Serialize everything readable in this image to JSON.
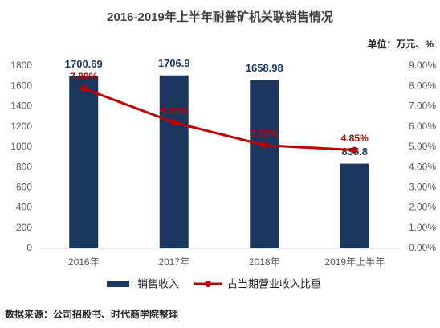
{
  "chart_data": {
    "type": "combo",
    "title": "2016-2019年上半年耐普矿机关联销售情况",
    "unit": "单位：万元、%",
    "source": "数据来源：公司招股书、时代商学院整理",
    "categories": [
      "2016年",
      "2017年",
      "2018年",
      "2019年上半年"
    ],
    "series": [
      {
        "name": "销售收入",
        "type": "bar",
        "color": "#1b3760",
        "values": [
          1700.69,
          1706.9,
          1658.98,
          835.8
        ]
      },
      {
        "name": "占当期营业收入比重",
        "type": "line",
        "axis": "y2",
        "color": "#c00000",
        "values": [
          7.89,
          6.21,
          5.09,
          4.85
        ],
        "value_labels": [
          "7.89%",
          "6.21%",
          "5.09%",
          "4.85%"
        ]
      }
    ],
    "ylim": [
      0,
      1800
    ],
    "yticks": [
      0,
      200,
      400,
      600,
      800,
      1000,
      1200,
      1400,
      1600,
      1800
    ],
    "y2lim": [
      0,
      9
    ],
    "y2ticks": [
      {
        "value": 0,
        "label": "0.00%"
      },
      {
        "value": 1,
        "label": "1.00%"
      },
      {
        "value": 2,
        "label": "2.00%"
      },
      {
        "value": 3,
        "label": "3.00%"
      },
      {
        "value": 4,
        "label": "4.00%"
      },
      {
        "value": 5,
        "label": "5.00%"
      },
      {
        "value": 6,
        "label": "6.00%"
      },
      {
        "value": 7,
        "label": "7.00%"
      },
      {
        "value": 8,
        "label": "8.00%"
      },
      {
        "value": 9,
        "label": "9.00%"
      }
    ],
    "grid": false,
    "legend": "bottom"
  }
}
